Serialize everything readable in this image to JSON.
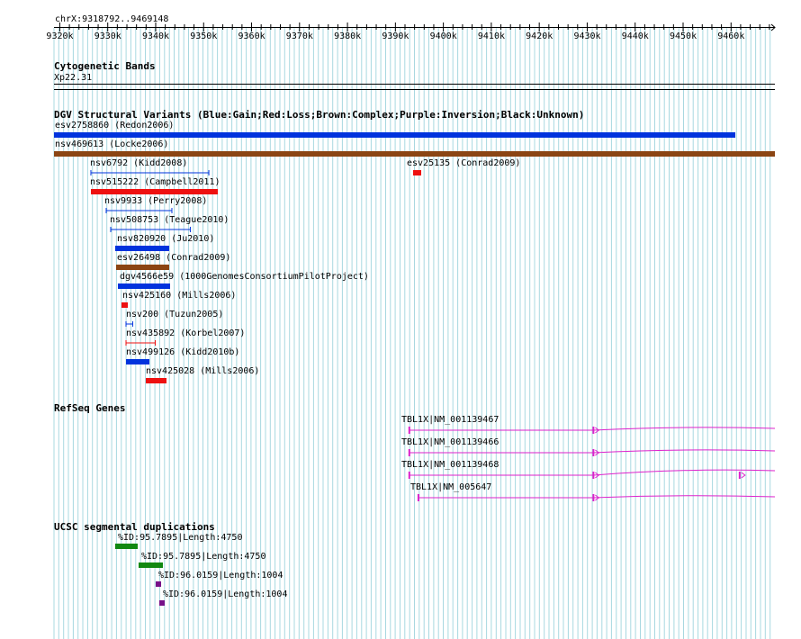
{
  "region": "chrX:9318792..9469148",
  "ruler": {
    "start": 9318792,
    "end": 9469148,
    "ticks": [
      "9320k",
      "9330k",
      "9340k",
      "9350k",
      "9360k",
      "9370k",
      "9380k",
      "9390k",
      "9400k",
      "9410k",
      "9420k",
      "9430k",
      "9440k",
      "9450k",
      "9460k"
    ]
  },
  "colors": {
    "grid": "#a8d8e0",
    "gain": "#0033dd",
    "loss": "#ee1111",
    "complex": "#8b4513",
    "gene": "#dd22cc",
    "segdup_green": "#118811",
    "segdup_purple": "#771188"
  },
  "tracks": {
    "cytoband": {
      "title": "Cytogenetic Bands",
      "band": "Xp22.31"
    },
    "dgv": {
      "title": "DGV Structural Variants (Blue:Gain;Red:Loss;Brown:Complex;Purple:Inversion;Black:Unknown)",
      "features": [
        {
          "label": "esv2758860 (Redon2006)",
          "start": 9318792,
          "end": 9460900,
          "type": "gain",
          "style": "thick"
        },
        {
          "label": "nsv469613 (Locke2006)",
          "start": 9318792,
          "end": 9469148,
          "type": "complex",
          "style": "thick"
        },
        {
          "label": "nsv6792 (Kidd2008)",
          "start": 9326400,
          "end": 9351000,
          "type": "gain",
          "style": "thin"
        },
        {
          "label": "esv25135 (Conrad2009)",
          "start": 9393600,
          "end": 9395400,
          "type": "loss",
          "style": "thick"
        },
        {
          "label": "nsv515222 (Campbell2011)",
          "start": 9326400,
          "end": 9353000,
          "type": "loss",
          "style": "thick"
        },
        {
          "label": "nsv9933 (Perry2008)",
          "start": 9329600,
          "end": 9343300,
          "type": "gain",
          "style": "thin"
        },
        {
          "label": "nsv508753 (Teague2010)",
          "start": 9330600,
          "end": 9347200,
          "type": "gain",
          "style": "thin"
        },
        {
          "label": "nsv820920 (Ju2010)",
          "start": 9331600,
          "end": 9342800,
          "type": "gain",
          "style": "thick"
        },
        {
          "label": "esv26498 (Conrad2009)",
          "start": 9331800,
          "end": 9342800,
          "type": "complex",
          "style": "thick"
        },
        {
          "label": "dgv4566e59 (1000GenomesConsortiumPilotProject)",
          "start": 9332200,
          "end": 9343100,
          "type": "gain",
          "style": "thick"
        },
        {
          "label": "nsv425160 (Mills2006)",
          "start": 9332800,
          "end": 9334100,
          "type": "loss",
          "style": "thick"
        },
        {
          "label": "nsv200 (Tuzun2005)",
          "start": 9333800,
          "end": 9335200,
          "type": "gain",
          "style": "thin"
        },
        {
          "label": "nsv435892 (Korbel2007)",
          "start": 9333800,
          "end": 9339900,
          "type": "loss",
          "style": "thin"
        },
        {
          "label": "nsv499126 (Kidd2010b)",
          "start": 9333800,
          "end": 9338600,
          "type": "gain",
          "style": "thick"
        },
        {
          "label": "nsv425028 (Mills2006)",
          "start": 9338000,
          "end": 9342200,
          "type": "loss",
          "style": "thick"
        }
      ]
    },
    "refseq": {
      "title": "RefSeq Genes",
      "genes": [
        {
          "label": "TBL1X|NM_001139467",
          "start": 9392900,
          "end": 9469148,
          "exons": [
            9392900,
            9431300
          ]
        },
        {
          "label": "TBL1X|NM_001139466",
          "start": 9392900,
          "end": 9469148,
          "exons": [
            9392900,
            9431300
          ]
        },
        {
          "label": "TBL1X|NM_001139468",
          "start": 9392900,
          "end": 9469148,
          "exons": [
            9392900,
            9431300,
            9461800
          ]
        },
        {
          "label": "TBL1X|NM_005647",
          "start": 9394800,
          "end": 9469148,
          "exons": [
            9394800,
            9431300
          ]
        }
      ]
    },
    "segdup": {
      "title": "UCSC segmental duplications",
      "features": [
        {
          "label": "%ID:95.7895|Length:4750",
          "start": 9331600,
          "end": 9336300,
          "color": "segdup_green"
        },
        {
          "label": "%ID:95.7895|Length:4750",
          "start": 9336500,
          "end": 9341500,
          "color": "segdup_green"
        },
        {
          "label": "%ID:96.0159|Length:1004",
          "start": 9340000,
          "end": 9341100,
          "color": "segdup_purple"
        },
        {
          "label": "%ID:96.0159|Length:1004",
          "start": 9340800,
          "end": 9341900,
          "color": "segdup_purple"
        }
      ]
    }
  }
}
